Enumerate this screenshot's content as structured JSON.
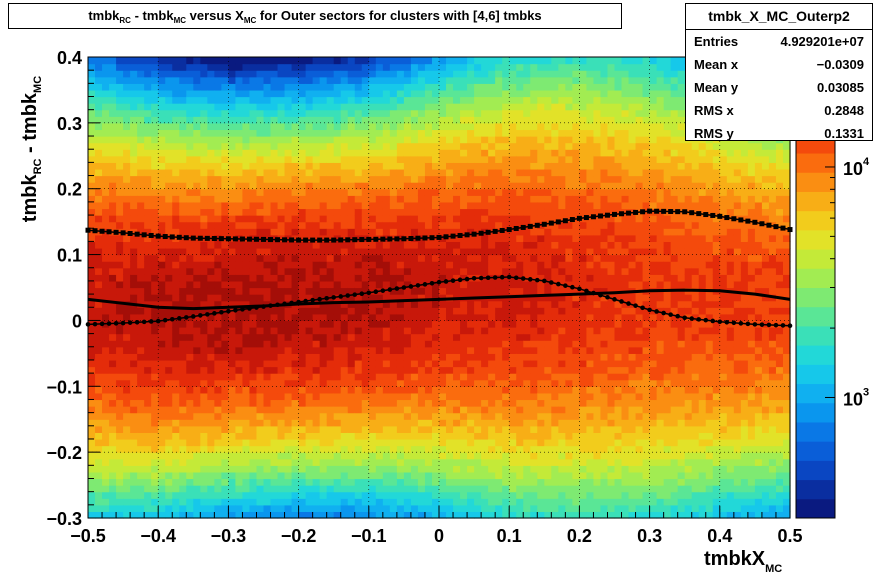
{
  "title": {
    "part1": "tmbk",
    "sub1": "RC",
    "part2": " - tmbk",
    "sub2": "MC",
    "part3": " versus X",
    "sub3": "MC",
    "part4": " for Outer sectors for clusters with [4,6] tmbks"
  },
  "stats": {
    "name": "tmbk_X_MC_Outerp2",
    "rows": [
      {
        "label": "Entries",
        "value": "4.929201e+07"
      },
      {
        "label": "Mean x",
        "value": "−0.0309"
      },
      {
        "label": "Mean y",
        "value": "0.03085"
      },
      {
        "label": "RMS x",
        "value": "0.2848"
      },
      {
        "label": "RMS y",
        "value": "0.1331"
      }
    ]
  },
  "axes": {
    "ylabel": {
      "a": "tmbk",
      "sa": "RC",
      "b": " - tmbk",
      "sb": "MC"
    },
    "xlabel": {
      "a": "tmbkX",
      "sa": "MC"
    }
  },
  "palette": {
    "colors": [
      "#0a1a80",
      "#0a2ea0",
      "#0a46c2",
      "#0a5ed8",
      "#0a78e6",
      "#0a96ee",
      "#10b0f0",
      "#16c8ea",
      "#22d8d8",
      "#3ae0b8",
      "#5ae696",
      "#7eea72",
      "#a2ec52",
      "#c4ea38",
      "#e2e228",
      "#f2cc1c",
      "#f8ae16",
      "#fa8e12",
      "#fa6c0e",
      "#f44a0c",
      "#e42c0a",
      "#c8180a",
      "#a40e08",
      "#800806"
    ],
    "curve_color": "#000000"
  },
  "chart_data": {
    "type": "heatmap",
    "xlim": [
      -0.5,
      0.5
    ],
    "ylim": [
      -0.3,
      0.4
    ],
    "x_ticks": [
      "−0.5",
      "−0.4",
      "−0.3",
      "−0.2",
      "−0.1",
      "0",
      "0.1",
      "0.2",
      "0.3",
      "0.4",
      "0.5"
    ],
    "y_ticks": [
      "−0.3",
      "−0.2",
      "−0.1",
      "0",
      "0.1",
      "0.2",
      "0.3",
      "0.4"
    ],
    "z_scale": "log",
    "z_range": [
      300,
      30000
    ],
    "z_ticks": [
      {
        "value": 1000,
        "base": "10",
        "exp": "3"
      },
      {
        "value": 10000,
        "base": "10",
        "exp": "4"
      }
    ],
    "grid": true,
    "model": {
      "description_free": true,
      "peak_z": 22000,
      "center_y": [
        [
          -0.5,
          0.03
        ],
        [
          -0.4,
          0.02
        ],
        [
          -0.3,
          0.025
        ],
        [
          -0.2,
          0.03
        ],
        [
          -0.1,
          0.035
        ],
        [
          0.0,
          0.045
        ],
        [
          0.1,
          0.05
        ],
        [
          0.2,
          0.05
        ],
        [
          0.3,
          0.045
        ],
        [
          0.4,
          0.035
        ],
        [
          0.5,
          0.03
        ]
      ],
      "width_y": [
        [
          -0.5,
          0.18
        ],
        [
          -0.4,
          0.17
        ],
        [
          -0.3,
          0.16
        ],
        [
          -0.2,
          0.16
        ],
        [
          -0.1,
          0.165
        ],
        [
          0.0,
          0.18
        ],
        [
          0.1,
          0.2
        ],
        [
          0.2,
          0.21
        ],
        [
          0.3,
          0.21
        ],
        [
          0.4,
          0.19
        ],
        [
          0.5,
          0.18
        ]
      ],
      "amp_x": [
        [
          -0.5,
          0.85
        ],
        [
          -0.4,
          0.95
        ],
        [
          -0.3,
          1.0
        ],
        [
          -0.2,
          1.0
        ],
        [
          -0.1,
          0.95
        ],
        [
          0.0,
          0.85
        ],
        [
          0.1,
          0.8
        ],
        [
          0.2,
          0.72
        ],
        [
          0.3,
          0.65
        ],
        [
          0.4,
          0.65
        ],
        [
          0.5,
          0.62
        ]
      ]
    },
    "series": [
      {
        "style": "solid",
        "x": [
          -0.5,
          -0.45,
          -0.4,
          -0.35,
          -0.3,
          -0.25,
          -0.2,
          -0.15,
          -0.1,
          -0.05,
          0.0,
          0.05,
          0.1,
          0.15,
          0.2,
          0.25,
          0.3,
          0.35,
          0.4,
          0.45,
          0.5
        ],
        "y": [
          0.032,
          0.026,
          0.02,
          0.018,
          0.02,
          0.022,
          0.025,
          0.027,
          0.028,
          0.03,
          0.032,
          0.034,
          0.036,
          0.038,
          0.04,
          0.042,
          0.045,
          0.046,
          0.045,
          0.04,
          0.032
        ]
      },
      {
        "style": "squares",
        "x": [
          -0.5,
          -0.45,
          -0.4,
          -0.35,
          -0.3,
          -0.25,
          -0.2,
          -0.15,
          -0.1,
          -0.05,
          0.0,
          0.05,
          0.1,
          0.15,
          0.2,
          0.25,
          0.3,
          0.35,
          0.4,
          0.45,
          0.5
        ],
        "y": [
          0.137,
          0.133,
          0.128,
          0.125,
          0.124,
          0.123,
          0.122,
          0.122,
          0.123,
          0.124,
          0.126,
          0.131,
          0.138,
          0.146,
          0.155,
          0.161,
          0.166,
          0.165,
          0.158,
          0.149,
          0.138
        ]
      },
      {
        "style": "diamonds",
        "x": [
          -0.5,
          -0.45,
          -0.4,
          -0.35,
          -0.3,
          -0.25,
          -0.2,
          -0.15,
          -0.1,
          -0.05,
          0.0,
          0.05,
          0.1,
          0.15,
          0.2,
          0.25,
          0.3,
          0.35,
          0.4,
          0.45,
          0.5
        ],
        "y": [
          -0.006,
          -0.004,
          -0.001,
          0.006,
          0.014,
          0.021,
          0.028,
          0.035,
          0.042,
          0.05,
          0.058,
          0.064,
          0.066,
          0.06,
          0.048,
          0.032,
          0.016,
          0.004,
          -0.002,
          -0.006,
          -0.008
        ]
      }
    ]
  }
}
